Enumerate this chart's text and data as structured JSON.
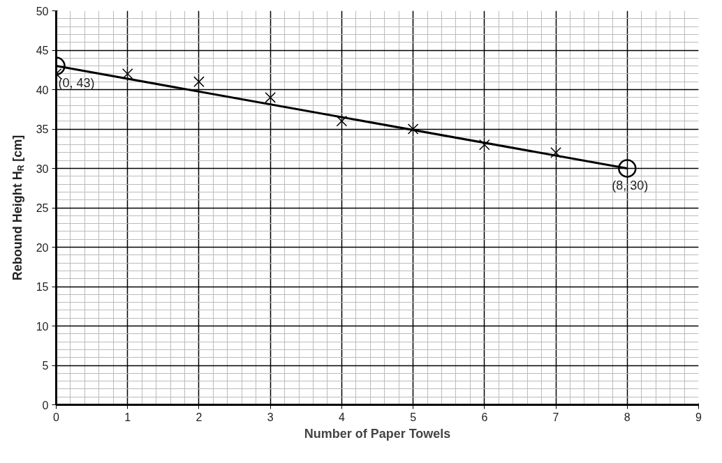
{
  "chart_data": {
    "type": "scatter",
    "xlabel": "Number of Paper Towels",
    "ylabel": "Rebound Height H$_{R}$ [cm]",
    "xlim": [
      0,
      9
    ],
    "ylim": [
      0,
      50
    ],
    "xticks": [
      0,
      1,
      2,
      3,
      4,
      5,
      6,
      7,
      8,
      9
    ],
    "yticks": [
      0,
      5,
      10,
      15,
      20,
      25,
      30,
      35,
      40,
      45,
      50
    ],
    "grid": true,
    "series": [
      {
        "type": "scatter",
        "marker": "cross",
        "color": "#000000",
        "x": [
          0,
          1,
          2,
          3,
          4,
          5,
          6,
          7
        ],
        "values": [
          42,
          42,
          41,
          39,
          36,
          35,
          33,
          32
        ]
      },
      {
        "type": "line",
        "color": "#000000",
        "x": [
          0,
          8
        ],
        "values": [
          43,
          30
        ]
      },
      {
        "type": "scatter",
        "marker": "circle",
        "color": "#000000",
        "x": [
          0,
          8
        ],
        "values": [
          43,
          30
        ]
      }
    ],
    "annotations": [
      {
        "text": "(0, 43)",
        "x": 0,
        "y": 43
      },
      {
        "text": "(8, 30)",
        "x": 8,
        "y": 30
      }
    ]
  }
}
